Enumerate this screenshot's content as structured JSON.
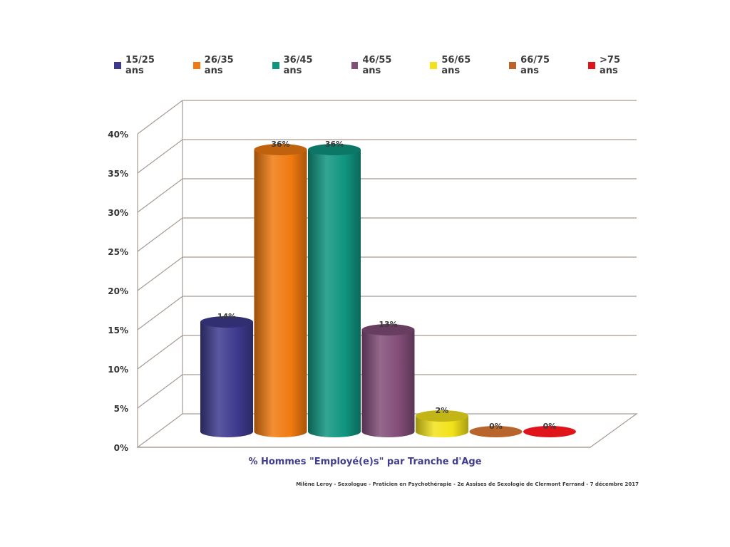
{
  "chart_data": {
    "type": "bar",
    "style": "3d-cylinder",
    "categories": [
      "15/25 ans",
      "26/35 ans",
      "36/45 ans",
      "46/55 ans",
      "56/65 ans",
      "66/75 ans",
      ">75 ans"
    ],
    "values": [
      14,
      36,
      36,
      13,
      2,
      0,
      0
    ],
    "data_labels": [
      "14%",
      "36%",
      "36%",
      "13%",
      "2%",
      "0%",
      "0%"
    ],
    "colors": [
      "#3d3a8e",
      "#f07a10",
      "#0f9580",
      "#824d78",
      "#f2e21a",
      "#b8642a",
      "#e0151c"
    ],
    "ylim": [
      0,
      40
    ],
    "yticks": [
      "0%",
      "5%",
      "10%",
      "15%",
      "20%",
      "25%",
      "30%",
      "35%",
      "40%"
    ],
    "grid": true,
    "legend_position": "top",
    "xlabel": "% Hommes \"Employé(e)s\" par Tranche d'Age",
    "ylabel": ""
  },
  "footer": {
    "credit": "Milène Leroy - Sexologue - Praticien en Psychothérapie - 2e Assises de Sexologie de Clermont Ferrand - 7 décembre 2017"
  }
}
